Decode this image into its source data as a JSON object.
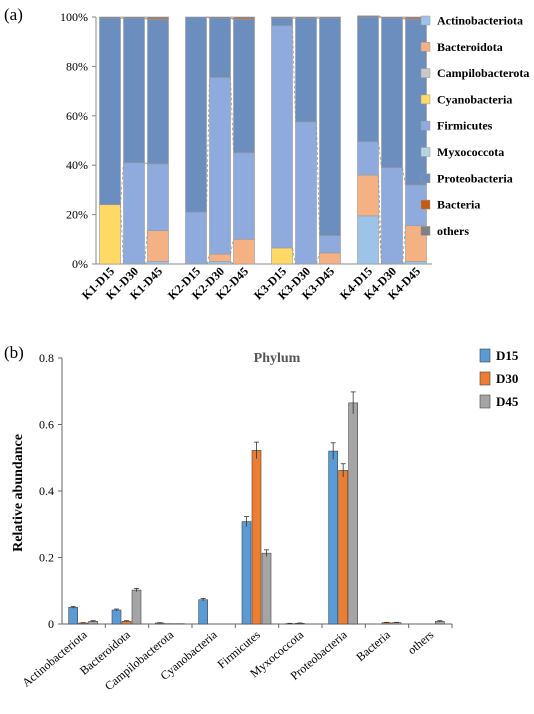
{
  "panel_a": {
    "label": "(a)",
    "chart_data": {
      "type": "bar",
      "stacked": true,
      "normalized": true,
      "yticks": [
        "0%",
        "20%",
        "40%",
        "60%",
        "80%",
        "100%"
      ],
      "ylim": [
        0,
        100
      ],
      "groups": [
        {
          "name": "K1",
          "samples": [
            "K1-D15",
            "K1-D30",
            "K1-D45"
          ]
        },
        {
          "name": "K2",
          "samples": [
            "K2-D15",
            "K2-D30",
            "K2-D45"
          ]
        },
        {
          "name": "K3",
          "samples": [
            "K3-D15",
            "K3-D30",
            "K3-D45"
          ]
        },
        {
          "name": "K4",
          "samples": [
            "K4-D15",
            "K4-D30",
            "K4-D45"
          ]
        }
      ],
      "categories": [
        "K1-D15",
        "K1-D30",
        "K1-D45",
        "K2-D15",
        "K2-D30",
        "K2-D45",
        "K3-D15",
        "K3-D30",
        "K3-D45",
        "K4-D15",
        "K4-D30",
        "K4-D45"
      ],
      "series": [
        {
          "name": "Actinobacteriota",
          "color": "#9dc3e6",
          "values": [
            0,
            0,
            1,
            0,
            1,
            0,
            0,
            0,
            0,
            19.5,
            0,
            1
          ]
        },
        {
          "name": "Bacteroidota",
          "color": "#f4b183",
          "values": [
            0,
            0,
            12.5,
            0,
            3,
            10,
            0,
            0,
            4.5,
            16.5,
            0,
            14.5
          ]
        },
        {
          "name": "Campilobacterota",
          "color": "#c9c9c9",
          "values": [
            0,
            0,
            0,
            0,
            0,
            0,
            0,
            0,
            0,
            0,
            0,
            0
          ]
        },
        {
          "name": "Cyanobacteria",
          "color": "#ffd966",
          "values": [
            24,
            0,
            0,
            0,
            0,
            0,
            6.5,
            0,
            0,
            0,
            0,
            0
          ]
        },
        {
          "name": "Firmicutes",
          "color": "#8faadc",
          "values": [
            0,
            41,
            27,
            21,
            71.5,
            35,
            90,
            57.5,
            7,
            13.5,
            39,
            16.5
          ]
        },
        {
          "name": "Myxococcota",
          "color": "#b4d6e4",
          "values": [
            0,
            0,
            0,
            0,
            0,
            0,
            0,
            0,
            0,
            0,
            0,
            0
          ]
        },
        {
          "name": "Proteobacteria",
          "color": "#6c8ebf",
          "values": [
            75.5,
            58.5,
            58.5,
            79,
            24,
            54,
            3,
            42,
            88,
            50.5,
            60.5,
            67
          ]
        },
        {
          "name": "Bacteria",
          "color": "#c55a11",
          "values": [
            0,
            0,
            0.5,
            0,
            0,
            0.5,
            0,
            0,
            0,
            0,
            0,
            0.5
          ]
        },
        {
          "name": "others",
          "color": "#808080",
          "values": [
            0.5,
            0.5,
            0.5,
            0,
            0.5,
            0.5,
            0.5,
            0.5,
            0.5,
            0.5,
            0.5,
            0.5
          ]
        }
      ],
      "legend_position": "right"
    }
  },
  "panel_b": {
    "label": "(b)",
    "chart_data": {
      "type": "bar",
      "title": "Phylum",
      "ylabel": "Relative abundance",
      "ylim": [
        0,
        0.8
      ],
      "yticks": [
        "0",
        "0.2",
        "0.4",
        "0.6",
        "0.8"
      ],
      "categories": [
        "Actinobacteriota",
        "Bacteroidota",
        "Campilobacterota",
        "Cyanobacteria",
        "Firmicutes",
        "Myxococcota",
        "Proteobacteria",
        "Bacteria",
        "others"
      ],
      "series": [
        {
          "name": "D15",
          "color": "#5b9bd5",
          "values": [
            0.05,
            0.042,
            0.003,
            0.073,
            0.308,
            0.001,
            0.52,
            0.0,
            0.0
          ],
          "errors": [
            0.003,
            0.003,
            0.001,
            0.004,
            0.015,
            0.001,
            0.025,
            0,
            0
          ]
        },
        {
          "name": "D30",
          "color": "#ed7d31",
          "values": [
            0.003,
            0.008,
            0.001,
            0.0,
            0.522,
            0.002,
            0.462,
            0.004,
            0.0
          ],
          "errors": [
            0.001,
            0.002,
            0,
            0,
            0.025,
            0.001,
            0.02,
            0.001,
            0
          ]
        },
        {
          "name": "D45",
          "color": "#a5a5a5",
          "values": [
            0.008,
            0.102,
            0.001,
            0.0,
            0.213,
            0.0,
            0.665,
            0.004,
            0.008
          ],
          "errors": [
            0.002,
            0.005,
            0,
            0,
            0.01,
            0,
            0.033,
            0.001,
            0.002
          ]
        }
      ],
      "legend_position": "right"
    }
  }
}
